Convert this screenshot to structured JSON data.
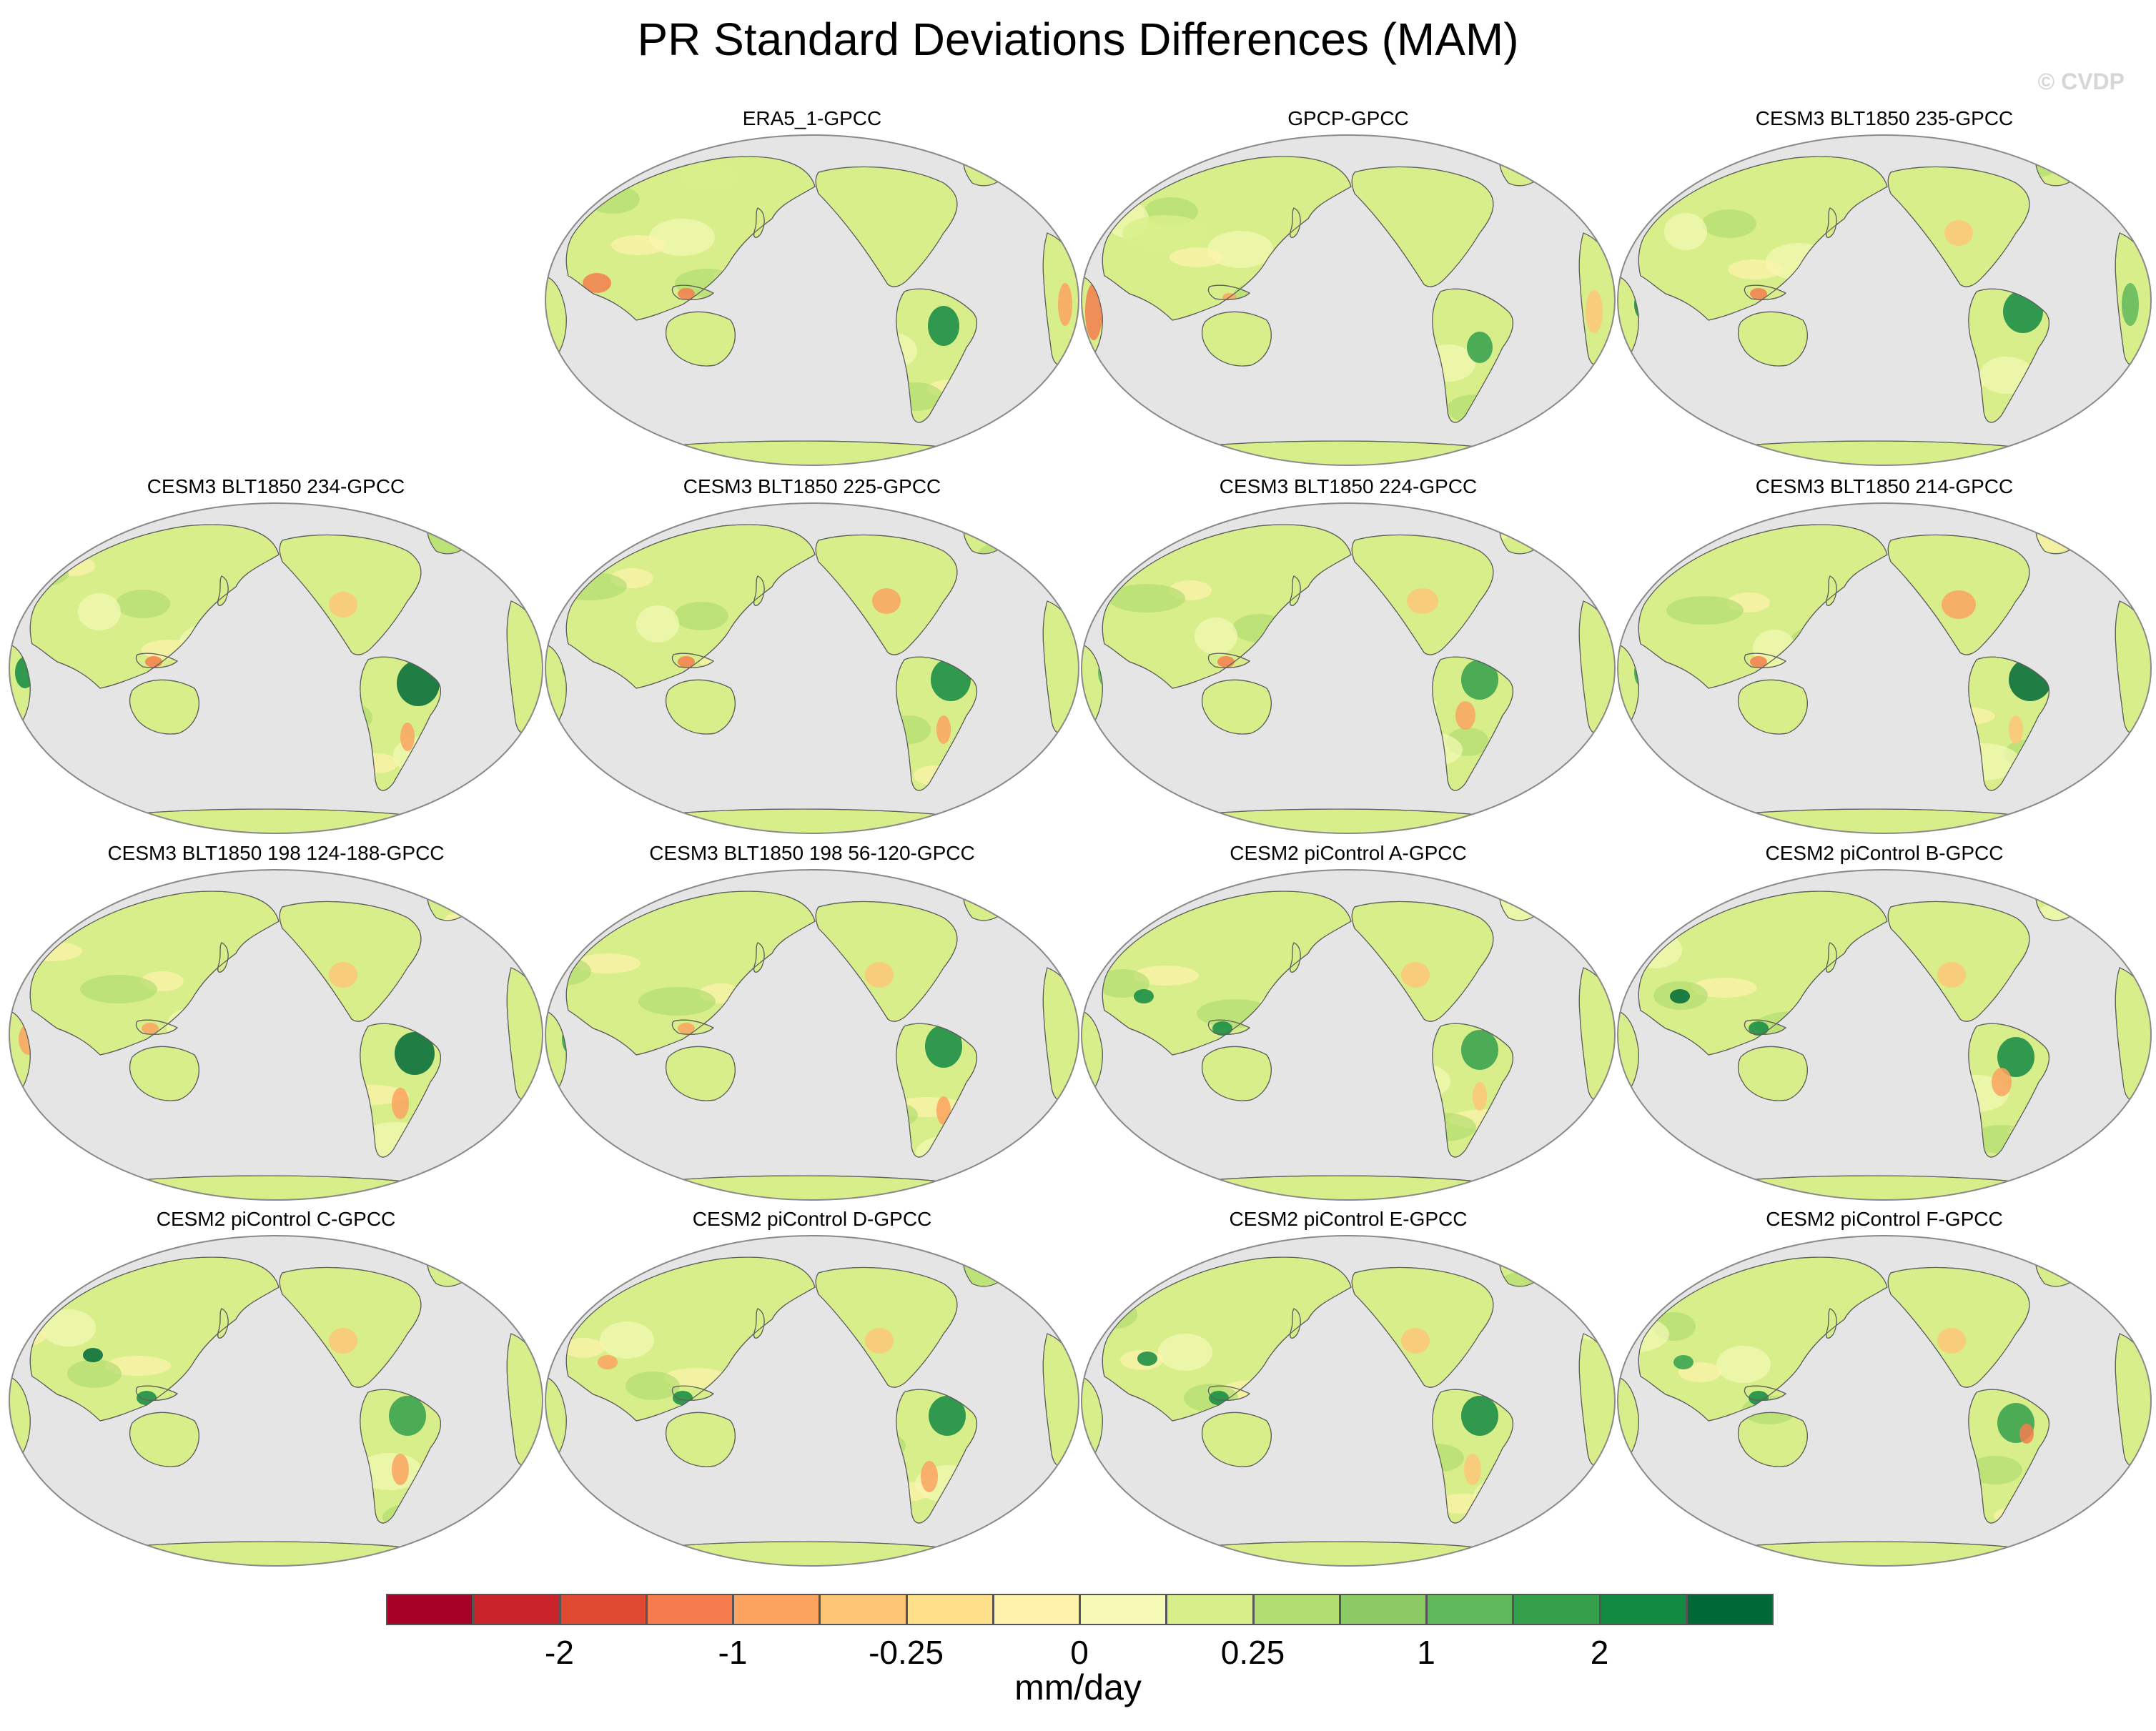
{
  "figure": {
    "title": "PR Standard Deviations Differences (MAM)",
    "watermark": "© CVDP"
  },
  "panels": [
    {
      "label": "ERA5_1-GPCC"
    },
    {
      "label": "GPCP-GPCC"
    },
    {
      "label": "CESM3 BLT1850 235-GPCC"
    },
    {
      "label": "CESM3 BLT1850 234-GPCC"
    },
    {
      "label": "CESM3 BLT1850 225-GPCC"
    },
    {
      "label": "CESM3 BLT1850 224-GPCC"
    },
    {
      "label": "CESM3 BLT1850 214-GPCC"
    },
    {
      "label": "CESM3 BLT1850 198 124-188-GPCC"
    },
    {
      "label": "CESM3 BLT1850 198 56-120-GPCC"
    },
    {
      "label": "CESM2 piControl A-GPCC"
    },
    {
      "label": "CESM2 piControl B-GPCC"
    },
    {
      "label": "CESM2 piControl C-GPCC"
    },
    {
      "label": "CESM2 piControl D-GPCC"
    },
    {
      "label": "CESM2 piControl E-GPCC"
    },
    {
      "label": "CESM2 piControl F-GPCC"
    }
  ],
  "colorbar": {
    "units": "mm/day",
    "colors": [
      "#a50026",
      "#c9242c",
      "#e04a33",
      "#f47c4d",
      "#fba35f",
      "#fdc677",
      "#fee08b",
      "#fff3ac",
      "#f5f9b5",
      "#d8ee8a",
      "#b2dd70",
      "#8ccb63",
      "#5fb85a",
      "#34a04c",
      "#138a42",
      "#006837"
    ],
    "tick_labels": [
      "-2",
      "-1",
      "-0.25",
      "0",
      "0.25",
      "1",
      "2"
    ],
    "tick_boundaries": [
      2,
      4,
      6,
      8,
      10,
      12,
      14
    ]
  },
  "colors": {
    "ocean": "#e5e5e5",
    "map_border": "#8a8a8a",
    "land_base": "#d8ee8a"
  }
}
